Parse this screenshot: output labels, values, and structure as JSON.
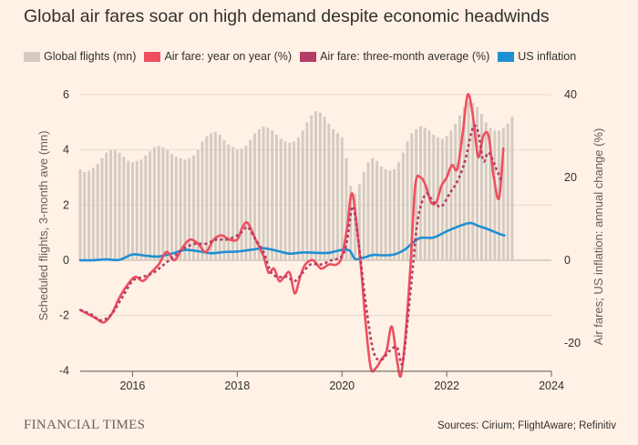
{
  "title": "Global air fares soar on high demand despite economic headwinds",
  "source": "Sources: Cirium; FlightAware; Refinitiv",
  "publisher": "FINANCIAL TIMES",
  "legend": [
    {
      "label": "Global flights (mn)",
      "color": "#d4cbc2"
    },
    {
      "label": "Air fare: year on year (%)",
      "color": "#ee4f5f"
    },
    {
      "label": "Air fare: three-month average (%)",
      "color": "#b53c66"
    },
    {
      "label": "US inflation",
      "color": "#1f8fd3"
    }
  ],
  "chart_data": {
    "type": "bar+line",
    "title": "Global air fares soar on high demand despite economic headwinds",
    "xlabel": "",
    "xlim": [
      2015.0,
      2024.0
    ],
    "x_ticks": [
      "2016",
      "2018",
      "2020",
      "2022",
      "2024"
    ],
    "ylabel_left": "Scheduled flights, 3-month ave (mn)",
    "ylim_left": [
      -4,
      6
    ],
    "left_ticks": [
      "6",
      "4",
      "2",
      "0",
      "-2",
      "-4"
    ],
    "ylabel_right": "Air fares; US inflation: annual change (%)",
    "ylim_right": [
      -28,
      40
    ],
    "right_ticks": [
      "40",
      "20",
      "0",
      "-20"
    ],
    "series": [
      {
        "name": "Global flights (mn)",
        "type": "bar",
        "axis": "left",
        "x": [
          2015.0,
          2015.083,
          2015.167,
          2015.25,
          2015.333,
          2015.417,
          2015.5,
          2015.583,
          2015.667,
          2015.75,
          2015.833,
          2015.917,
          2016.0,
          2016.083,
          2016.167,
          2016.25,
          2016.333,
          2016.417,
          2016.5,
          2016.583,
          2016.667,
          2016.75,
          2016.833,
          2016.917,
          2017.0,
          2017.083,
          2017.167,
          2017.25,
          2017.333,
          2017.417,
          2017.5,
          2017.583,
          2017.667,
          2017.75,
          2017.833,
          2017.917,
          2018.0,
          2018.083,
          2018.167,
          2018.25,
          2018.333,
          2018.417,
          2018.5,
          2018.583,
          2018.667,
          2018.75,
          2018.833,
          2018.917,
          2019.0,
          2019.083,
          2019.167,
          2019.25,
          2019.333,
          2019.417,
          2019.5,
          2019.583,
          2019.667,
          2019.75,
          2019.833,
          2019.917,
          2020.0,
          2020.083,
          2020.167,
          2020.25,
          2020.333,
          2020.417,
          2020.5,
          2020.583,
          2020.667,
          2020.75,
          2020.833,
          2020.917,
          2021.0,
          2021.083,
          2021.167,
          2021.25,
          2021.333,
          2021.417,
          2021.5,
          2021.583,
          2021.667,
          2021.75,
          2021.833,
          2021.917,
          2022.0,
          2022.083,
          2022.167,
          2022.25,
          2022.333,
          2022.417,
          2022.5,
          2022.583,
          2022.667,
          2022.75,
          2022.833,
          2022.917,
          2023.0,
          2023.083,
          2023.167,
          2023.25
        ],
        "values": [
          3.3,
          3.2,
          3.25,
          3.35,
          3.5,
          3.7,
          3.9,
          4.0,
          4.0,
          3.9,
          3.75,
          3.6,
          3.55,
          3.6,
          3.65,
          3.8,
          3.95,
          4.1,
          4.15,
          4.1,
          4.0,
          3.85,
          3.75,
          3.7,
          3.65,
          3.7,
          3.8,
          4.0,
          4.3,
          4.5,
          4.6,
          4.65,
          4.55,
          4.35,
          4.2,
          4.1,
          4.0,
          4.05,
          4.15,
          4.35,
          4.6,
          4.75,
          4.85,
          4.8,
          4.7,
          4.55,
          4.4,
          4.3,
          4.25,
          4.3,
          4.45,
          4.7,
          5.0,
          5.25,
          5.4,
          5.35,
          5.2,
          4.95,
          4.75,
          4.6,
          4.45,
          3.7,
          2.7,
          2.4,
          2.75,
          3.2,
          3.55,
          3.7,
          3.6,
          3.4,
          3.3,
          3.25,
          3.3,
          3.55,
          3.9,
          4.3,
          4.6,
          4.75,
          4.85,
          4.8,
          4.7,
          4.55,
          4.45,
          4.4,
          4.5,
          4.7,
          4.95,
          5.25,
          5.55,
          5.75,
          5.7,
          5.55,
          5.3,
          5.0,
          4.8,
          4.7,
          4.7,
          4.8,
          4.95,
          5.2
        ]
      },
      {
        "name": "Air fare: year on year (%)",
        "type": "line",
        "axis": "right",
        "x": [
          2015.0,
          2015.15,
          2015.3,
          2015.45,
          2015.6,
          2015.75,
          2015.9,
          2016.05,
          2016.2,
          2016.35,
          2016.5,
          2016.65,
          2016.8,
          2016.95,
          2017.1,
          2017.25,
          2017.4,
          2017.55,
          2017.7,
          2017.85,
          2018.0,
          2018.1,
          2018.2,
          2018.35,
          2018.5,
          2018.6,
          2018.7,
          2018.8,
          2018.9,
          2019.0,
          2019.1,
          2019.2,
          2019.3,
          2019.45,
          2019.6,
          2019.75,
          2019.9,
          2020.0,
          2020.1,
          2020.2,
          2020.35,
          2020.45,
          2020.55,
          2020.65,
          2020.75,
          2020.85,
          2020.95,
          2021.05,
          2021.12,
          2021.2,
          2021.3,
          2021.4,
          2021.5,
          2021.6,
          2021.7,
          2021.8,
          2021.9,
          2022.0,
          2022.1,
          2022.2,
          2022.3,
          2022.4,
          2022.5,
          2022.6,
          2022.7,
          2022.8,
          2022.9,
          2023.0,
          2023.08
        ],
        "values": [
          -12,
          -13,
          -14,
          -15,
          -13,
          -9,
          -6,
          -4,
          -5,
          -3,
          -1,
          2,
          0,
          3,
          5,
          4,
          2,
          5,
          6,
          5,
          5,
          8,
          9,
          5,
          1,
          -3,
          -2,
          -5,
          -4,
          -3,
          -8,
          -4,
          -1,
          0,
          -2,
          -1,
          -1,
          1,
          8,
          16,
          0,
          -15,
          -26,
          -26,
          -24,
          -22,
          -16,
          -24,
          -28,
          -20,
          -3,
          18,
          20,
          18,
          14,
          14,
          18,
          20,
          23,
          22,
          30,
          40,
          35,
          25,
          30,
          30,
          20,
          15,
          27
        ]
      },
      {
        "name": "Air fare: three-month average (%)",
        "type": "line",
        "dashed": true,
        "axis": "right",
        "x": [
          2015.0,
          2015.2,
          2015.4,
          2015.6,
          2015.8,
          2016.0,
          2016.2,
          2016.4,
          2016.6,
          2016.8,
          2017.0,
          2017.2,
          2017.4,
          2017.6,
          2017.8,
          2018.0,
          2018.1,
          2018.2,
          2018.35,
          2018.5,
          2018.65,
          2018.8,
          2018.95,
          2019.1,
          2019.25,
          2019.4,
          2019.6,
          2019.8,
          2020.0,
          2020.1,
          2020.2,
          2020.3,
          2020.45,
          2020.6,
          2020.75,
          2020.9,
          2021.05,
          2021.15,
          2021.25,
          2021.35,
          2021.45,
          2021.6,
          2021.75,
          2021.9,
          2022.05,
          2022.2,
          2022.35,
          2022.5,
          2022.6,
          2022.7,
          2022.8,
          2022.95,
          2023.05
        ],
        "values": [
          -12,
          -13,
          -14.5,
          -13,
          -9,
          -5,
          -4,
          -3,
          -1,
          1,
          3,
          4,
          4,
          5,
          5,
          6,
          7,
          8,
          5,
          2,
          -3,
          -4,
          -4,
          -5,
          -3,
          -1,
          -1,
          0,
          1,
          5,
          13,
          6,
          -10,
          -22,
          -24,
          -22,
          -21,
          -25,
          -15,
          -2,
          10,
          16,
          14,
          13,
          16,
          19,
          24,
          32,
          31,
          24,
          26,
          22,
          19
        ]
      },
      {
        "name": "US inflation",
        "type": "line",
        "axis": "right",
        "x": [
          2015.0,
          2015.25,
          2015.5,
          2015.75,
          2016.0,
          2016.25,
          2016.5,
          2016.75,
          2017.0,
          2017.25,
          2017.5,
          2017.75,
          2018.0,
          2018.25,
          2018.5,
          2018.75,
          2019.0,
          2019.25,
          2019.5,
          2019.75,
          2020.0,
          2020.15,
          2020.25,
          2020.4,
          2020.6,
          2020.75,
          2021.0,
          2021.2,
          2021.35,
          2021.5,
          2021.75,
          2022.0,
          2022.25,
          2022.45,
          2022.6,
          2022.75,
          2023.0,
          2023.1
        ],
        "values": [
          0,
          0,
          0.2,
          0.1,
          1.4,
          1.1,
          0.9,
          1.6,
          2.5,
          2.2,
          1.7,
          2.0,
          2.1,
          2.5,
          2.9,
          2.3,
          1.6,
          1.9,
          1.8,
          1.8,
          2.5,
          2.3,
          0.3,
          0.6,
          1.3,
          1.2,
          1.4,
          2.6,
          4.2,
          5.4,
          5.5,
          7.0,
          8.3,
          9.0,
          8.3,
          7.7,
          6.4,
          6.0
        ]
      }
    ]
  }
}
